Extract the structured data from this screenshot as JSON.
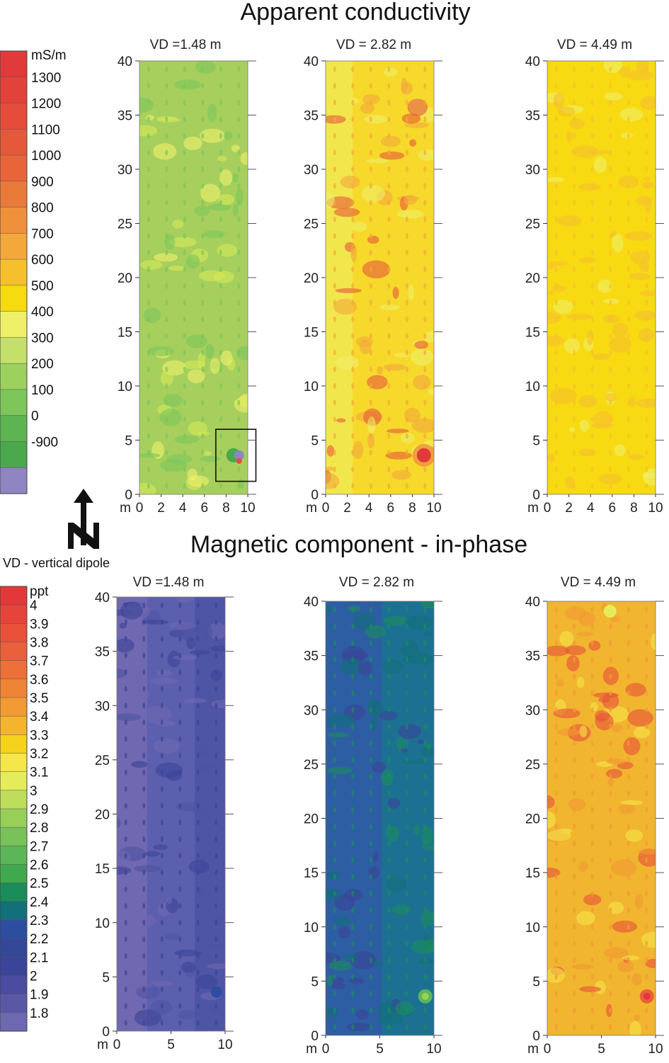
{
  "figure": {
    "note": "VD - vertical dipole",
    "north_label": "N"
  },
  "chart_data": [
    {
      "type": "heatmap",
      "title": "Apparent conductivity",
      "unit": "mS/m",
      "colorbar": {
        "labels": [
          "1300",
          "1200",
          "1100",
          "1000",
          "900",
          "800",
          "700",
          "600",
          "500",
          "400",
          "300",
          "200",
          "100",
          "0",
          "-900"
        ],
        "colors": [
          "#e03a3a",
          "#e2423a",
          "#e54c3a",
          "#e6583a",
          "#e8653a",
          "#ea7a3a",
          "#ef913c",
          "#f4a83c",
          "#f6c02d",
          "#f5db0f",
          "#eef06a",
          "#c4e06a",
          "#9dd15e",
          "#7cc65a",
          "#5db552",
          "#4aa84d",
          "#8f85c2"
        ]
      },
      "panels": [
        {
          "label": "VD =1.48 m",
          "fill": "#a7cf5d",
          "xticks": [
            "0",
            "2",
            "4",
            "6",
            "8",
            "10"
          ],
          "xunit": "m",
          "yticks": [
            "0",
            "5",
            "10",
            "15",
            "20",
            "25",
            "30",
            "35",
            "40"
          ],
          "xlim": [
            0,
            10
          ],
          "ylim": [
            0,
            40
          ]
        },
        {
          "label": "VD = 2.82 m",
          "fill": "#f6d92a",
          "xticks": [
            "0",
            "2",
            "4",
            "6",
            "8",
            "10"
          ],
          "xunit": "m",
          "yticks": [
            "0",
            "5",
            "10",
            "15",
            "20",
            "25",
            "30",
            "35",
            "40"
          ],
          "xlim": [
            0,
            10
          ],
          "ylim": [
            0,
            40
          ]
        },
        {
          "label": "VD = 4.49 m",
          "fill": "#f7da12",
          "xticks": [
            "0",
            "2",
            "4",
            "6",
            "8",
            "10"
          ],
          "xunit": "m",
          "yticks": [
            "0",
            "5",
            "10",
            "15",
            "20",
            "25",
            "30",
            "35",
            "40"
          ],
          "xlim": [
            0,
            10
          ],
          "ylim": [
            0,
            40
          ]
        }
      ]
    },
    {
      "type": "heatmap",
      "title": "Magnetic component - in-phase",
      "unit": "ppt",
      "colorbar": {
        "labels": [
          "4",
          "3.9",
          "3.8",
          "3.7",
          "3.6",
          "3.5",
          "3.4",
          "3.3",
          "3.2",
          "3.1",
          "3",
          "2.9",
          "2.8",
          "2.7",
          "2.6",
          "2.5",
          "2.4",
          "2.3",
          "2.2",
          "2.1",
          "2",
          "1.9",
          "1.8"
        ],
        "colors": [
          "#e2383a",
          "#e5443a",
          "#e8503a",
          "#ea603a",
          "#ec7038",
          "#ef8436",
          "#f29a34",
          "#f5b430",
          "#f6d21c",
          "#f5e64a",
          "#e4ec5c",
          "#bedd5a",
          "#98cf58",
          "#78c259",
          "#5bb657",
          "#3fa94d",
          "#1b8d5a",
          "#11707a",
          "#2d4ea0",
          "#34489a",
          "#3a4498",
          "#4a4ca0",
          "#5a58a6",
          "#6e68b0"
        ]
      },
      "panels": [
        {
          "label": "VD =1.48 m",
          "fill": "#5c5fae",
          "xticks": [
            "0",
            "5",
            "10"
          ],
          "xunit": "m",
          "yticks": [
            "0",
            "5",
            "10",
            "15",
            "20",
            "25",
            "30",
            "35",
            "40"
          ],
          "xlim": [
            0,
            10
          ],
          "ylim": [
            0,
            40
          ]
        },
        {
          "label": "VD = 2.82 m",
          "fill": "#2d5ea3",
          "xticks": [
            "0",
            "5",
            "10"
          ],
          "xunit": "m",
          "yticks": [
            "0",
            "5",
            "10",
            "15",
            "20",
            "25",
            "30",
            "35",
            "40"
          ],
          "xlim": [
            0,
            10
          ],
          "ylim": [
            0,
            40
          ]
        },
        {
          "label": "VD = 4.49 m",
          "fill": "#f1b52f",
          "xticks": [
            "0",
            "5",
            "10"
          ],
          "xunit": "m",
          "yticks": [
            "0",
            "5",
            "10",
            "15",
            "20",
            "25",
            "30",
            "35",
            "40"
          ],
          "xlim": [
            0,
            10
          ],
          "ylim": [
            0,
            40
          ]
        }
      ]
    }
  ]
}
